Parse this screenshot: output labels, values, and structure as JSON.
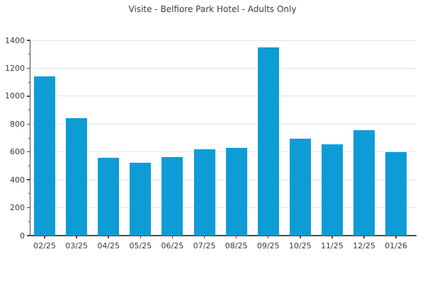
{
  "chart_data": {
    "type": "bar",
    "title": "Visite - Belfiore Park Hotel - Adults Only",
    "categories": [
      "02/25",
      "03/25",
      "04/25",
      "05/25",
      "06/25",
      "07/25",
      "08/25",
      "09/25",
      "10/25",
      "11/25",
      "12/25",
      "01/26"
    ],
    "values": [
      1140,
      840,
      560,
      520,
      565,
      620,
      630,
      1350,
      695,
      655,
      755,
      600
    ],
    "xlabel": "",
    "ylabel": "",
    "ylim": [
      0,
      1400
    ],
    "y_ticks": [
      0,
      200,
      400,
      600,
      800,
      1000,
      1200,
      1400
    ],
    "y_minor_step": 100,
    "grid": "horizontal",
    "legend": "none",
    "bar_color": "#0e9cd6"
  },
  "colors": {
    "background": "#ffffff",
    "bar": "#0e9cd6",
    "axis": "#4a4a4a",
    "grid": "#e5e5e5",
    "text": "#3c3c3c"
  }
}
